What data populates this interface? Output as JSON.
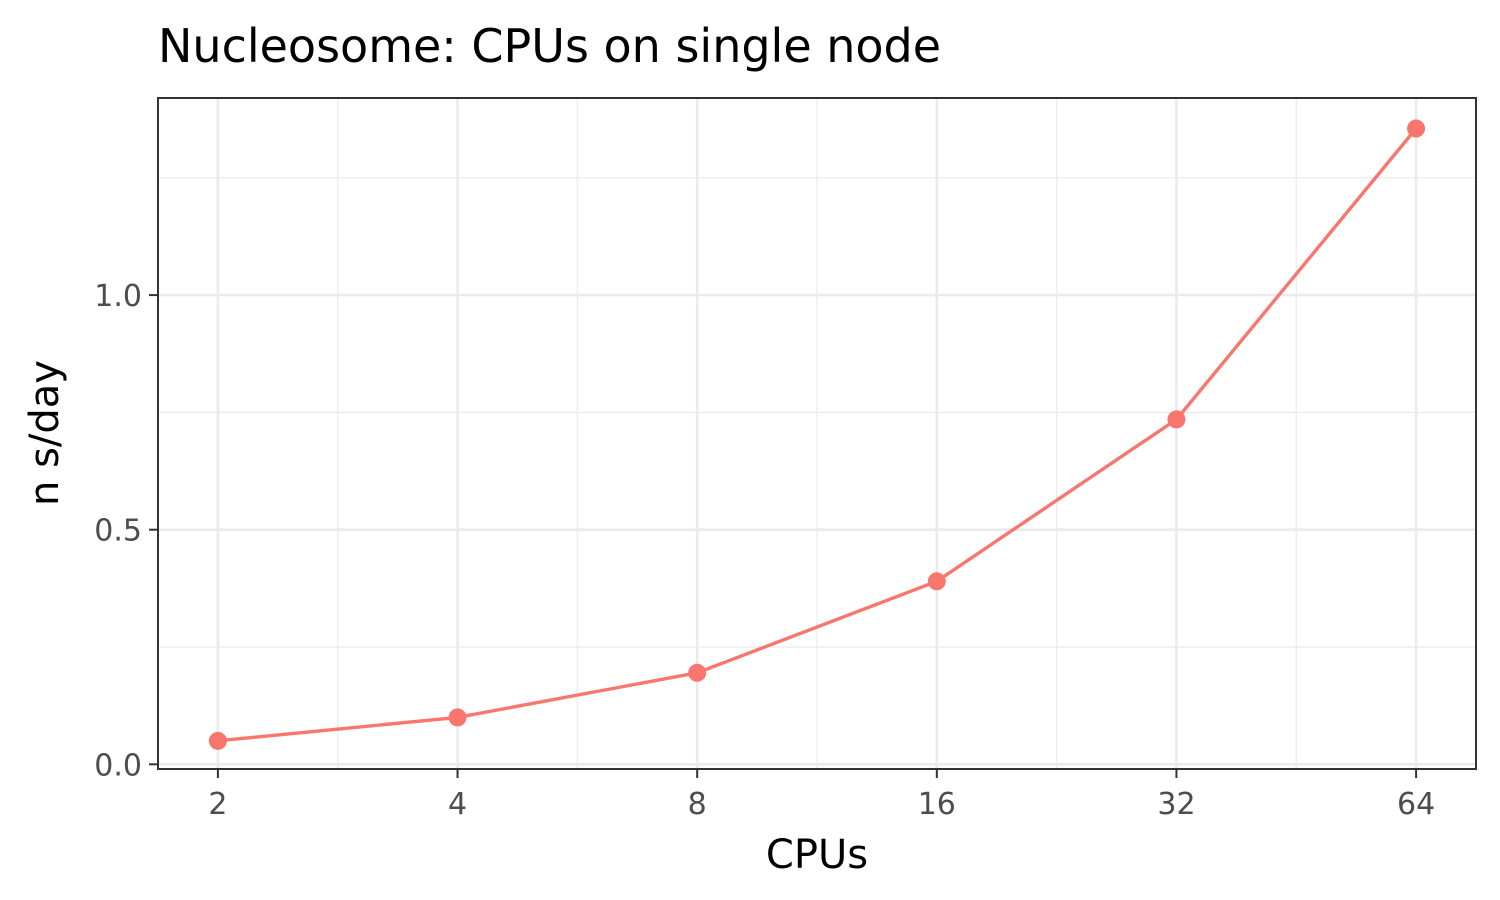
{
  "chart_data": {
    "type": "line",
    "title": "Nucleosome: CPUs on single node",
    "xlabel": "CPUs",
    "ylabel": "n s/day",
    "x_scale": "log2",
    "x": [
      2,
      4,
      8,
      16,
      32,
      64
    ],
    "x_tick_labels": [
      "2",
      "4",
      "8",
      "16",
      "32",
      "64"
    ],
    "y_ticks": [
      0.0,
      0.5,
      1.0
    ],
    "y_tick_labels": [
      "0.0",
      "0.5",
      "1.0"
    ],
    "ylim": [
      -0.01,
      1.42
    ],
    "series": [
      {
        "values": [
          0.05,
          0.1,
          0.195,
          0.39,
          0.735,
          1.355
        ],
        "color": "#F8766D"
      }
    ],
    "grid": true,
    "legend": "none"
  }
}
